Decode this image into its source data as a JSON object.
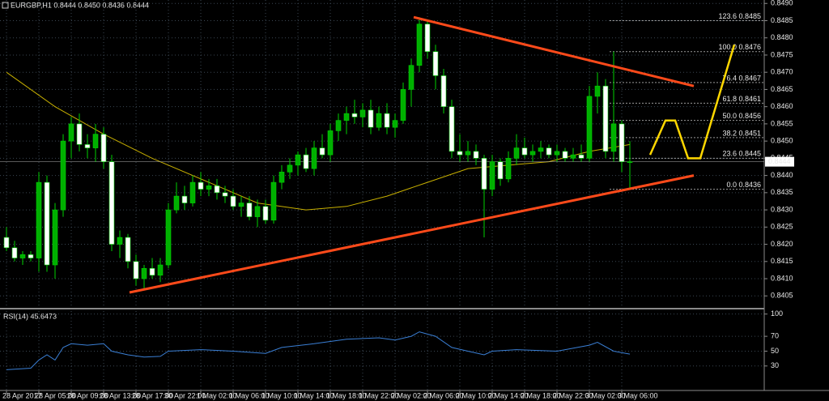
{
  "chart_data": [
    {
      "type": "candlestick",
      "title": "EURGBP,H1  0.8444 0.8450 0.8436 0.8444",
      "categories": [
        "28 Apr 2017",
        null,
        null,
        null,
        "28 Apr 05:00",
        null,
        null,
        null,
        "28 Apr 09:00",
        null,
        null,
        null,
        "28 Apr 13:00",
        null,
        null,
        null,
        "28 Apr 17:00",
        null,
        null,
        null,
        "30 Apr 22:00",
        null,
        null,
        null,
        "1 May 02:00",
        null,
        null,
        null,
        "1 May 06:00",
        null,
        null,
        null,
        "1 May 10:00",
        null,
        null,
        null,
        "1 May 14:00",
        null,
        null,
        null,
        "1 May 18:00",
        null,
        null,
        null,
        "1 May 22:00",
        null,
        null,
        null,
        "2 May 02:00",
        null,
        null,
        null,
        "2 May 06:00",
        null,
        null,
        null,
        "2 May 10:00",
        null,
        null,
        null,
        "2 May 14:00",
        null,
        null,
        null,
        "2 May 18:00",
        null,
        null,
        null,
        "2 May 22:00",
        null,
        null,
        null,
        "3 May 02:00",
        null,
        null,
        null,
        "3 May 06:00",
        null
      ],
      "open": [
        0.8422,
        0.8419,
        0.8416,
        0.8417,
        0.8416,
        0.8438,
        0.8414,
        0.843,
        0.845,
        0.8455,
        0.8449,
        0.8448,
        0.8452,
        0.8444,
        0.842,
        0.8422,
        0.8415,
        0.841,
        0.8413,
        0.8411,
        0.8414,
        0.843,
        0.8434,
        0.8432,
        0.8438,
        0.8436,
        0.8437,
        0.8435,
        0.8434,
        0.8431,
        0.8432,
        0.8428,
        0.8431,
        0.8427,
        0.8438,
        0.8441,
        0.8443,
        0.8446,
        0.8442,
        0.8448,
        0.8446,
        0.8453,
        0.8456,
        0.8458,
        0.8457,
        0.8459,
        0.8454,
        0.8458,
        0.8454,
        0.8456,
        0.8465,
        0.8472,
        0.8484,
        0.8476,
        0.8469,
        0.846,
        0.8447,
        0.8446,
        0.8447,
        0.8445,
        0.8436,
        0.8444,
        0.8439,
        0.8445,
        0.8448,
        0.8446,
        0.8447,
        0.8448,
        0.8446,
        0.8447,
        0.8445,
        0.8446,
        0.8445,
        0.8463,
        0.8466,
        0.8447,
        0.8455,
        0.8444
      ],
      "high": [
        0.8425,
        0.8421,
        0.8418,
        0.8418,
        0.8441,
        0.844,
        0.8432,
        0.8452,
        0.8457,
        0.8458,
        0.8452,
        0.8455,
        0.8454,
        0.8446,
        0.8424,
        0.8423,
        0.8417,
        0.8414,
        0.8416,
        0.8416,
        0.8432,
        0.8438,
        0.8437,
        0.844,
        0.8441,
        0.8439,
        0.8439,
        0.8437,
        0.8436,
        0.8434,
        0.8434,
        0.8433,
        0.8433,
        0.844,
        0.8443,
        0.8445,
        0.8447,
        0.8448,
        0.845,
        0.8452,
        0.8455,
        0.8458,
        0.846,
        0.8462,
        0.8461,
        0.8462,
        0.846,
        0.8461,
        0.8458,
        0.8467,
        0.8474,
        0.8486,
        0.8485,
        0.8478,
        0.8471,
        0.8462,
        0.8452,
        0.845,
        0.8449,
        0.8446,
        0.8446,
        0.8445,
        0.8447,
        0.8452,
        0.8451,
        0.8449,
        0.845,
        0.8449,
        0.8449,
        0.8448,
        0.8448,
        0.8449,
        0.8466,
        0.847,
        0.8468,
        0.8476,
        0.8456,
        0.845
      ],
      "low": [
        0.8418,
        0.8415,
        0.8414,
        0.8415,
        0.8412,
        0.8412,
        0.841,
        0.8428,
        0.8445,
        0.8447,
        0.8445,
        0.8444,
        0.8442,
        0.8418,
        0.8416,
        0.8413,
        0.8408,
        0.8407,
        0.841,
        0.8409,
        0.8413,
        0.8429,
        0.843,
        0.8431,
        0.8434,
        0.8434,
        0.8433,
        0.8432,
        0.843,
        0.8428,
        0.8427,
        0.8425,
        0.8426,
        0.8426,
        0.8436,
        0.8439,
        0.844,
        0.8441,
        0.844,
        0.8445,
        0.8444,
        0.845,
        0.8452,
        0.8455,
        0.8454,
        0.8452,
        0.8453,
        0.8452,
        0.8451,
        0.8455,
        0.846,
        0.847,
        0.8474,
        0.8465,
        0.8458,
        0.8445,
        0.8444,
        0.8444,
        0.8443,
        0.8422,
        0.8434,
        0.8437,
        0.8438,
        0.8443,
        0.8445,
        0.8444,
        0.8445,
        0.8445,
        0.8444,
        0.8444,
        0.8444,
        0.8444,
        0.8444,
        0.8458,
        0.8445,
        0.8444,
        0.8441,
        0.8436
      ],
      "close": [
        0.8419,
        0.8416,
        0.8417,
        0.8416,
        0.8438,
        0.8414,
        0.843,
        0.845,
        0.8455,
        0.8449,
        0.8448,
        0.8452,
        0.8444,
        0.842,
        0.8422,
        0.8415,
        0.841,
        0.8413,
        0.8411,
        0.8414,
        0.843,
        0.8434,
        0.8432,
        0.8438,
        0.8436,
        0.8437,
        0.8435,
        0.8434,
        0.8431,
        0.8432,
        0.8428,
        0.8431,
        0.8427,
        0.8438,
        0.8441,
        0.8443,
        0.8446,
        0.8442,
        0.8448,
        0.8446,
        0.8453,
        0.8456,
        0.8458,
        0.8457,
        0.8459,
        0.8454,
        0.8458,
        0.8454,
        0.8456,
        0.8465,
        0.8472,
        0.8484,
        0.8476,
        0.8469,
        0.846,
        0.8447,
        0.8446,
        0.8447,
        0.8445,
        0.8436,
        0.8444,
        0.8439,
        0.8445,
        0.8448,
        0.8446,
        0.8447,
        0.8448,
        0.8446,
        0.8447,
        0.8445,
        0.8446,
        0.8445,
        0.8463,
        0.8466,
        0.8447,
        0.8455,
        0.8444,
        0.8444
      ],
      "up_color": "#00b000",
      "down_color": "#ffffff",
      "wick_color": "#00d000",
      "xlim": [
        -0.8,
        93.6
      ],
      "ylim": [
        0.8402,
        0.8491
      ],
      "yticks": [
        {
          "value": 0.849,
          "label": "0.8490"
        },
        0.8485,
        {
          "value": 0.848,
          "label": "0.8480"
        },
        0.8475,
        {
          "value": 0.847,
          "label": "0.8470"
        },
        0.8465,
        {
          "value": 0.846,
          "label": "0.8460"
        },
        0.8455,
        {
          "value": 0.845,
          "label": "0.8450"
        },
        0.8445,
        {
          "value": 0.844,
          "label": "0.8440"
        },
        0.8435,
        {
          "value": 0.843,
          "label": "0.8430"
        },
        0.8425,
        {
          "value": 0.842,
          "label": "0.8420"
        },
        0.8415,
        {
          "value": 0.841,
          "label": "0.8410"
        },
        0.8405
      ],
      "grid": true,
      "current_price": 0.8444,
      "ma": {
        "color": "#c8b000",
        "x": [
          0,
          6,
          12,
          18,
          25,
          31,
          37,
          42,
          47,
          52,
          57,
          62,
          67,
          72,
          77
        ],
        "values": [
          0.847,
          0.846,
          0.8452,
          0.8445,
          0.8438,
          0.8432,
          0.843,
          0.8431,
          0.8434,
          0.8438,
          0.8442,
          0.8443,
          0.8444,
          0.8447,
          0.8449
        ]
      },
      "trendlines": [
        {
          "color": "#ff4a1a",
          "x": [
            50.3,
            84.9
          ],
          "values": [
            0.8486,
            0.8466
          ]
        },
        {
          "color": "#ff4a1a",
          "x": [
            15.2,
            84.9
          ],
          "values": [
            0.8406,
            0.844
          ]
        }
      ],
      "projection": {
        "color": "#ffd700",
        "x": [
          79.5,
          81.4,
          82.6,
          84.2,
          85.7,
          89.9
        ],
        "values": [
          0.8446,
          0.8456,
          0.8456,
          0.8445,
          0.8445,
          0.8478
        ]
      },
      "fibo": [
        {
          "label": "123.6 0.8485",
          "value": 0.8485
        },
        {
          "label": "100.0 0.8476",
          "value": 0.8476
        },
        {
          "label": "76.4 0.8467",
          "value": 0.8467
        },
        {
          "label": "61.8 0.8461",
          "value": 0.8461
        },
        {
          "label": "50.0 0.8456",
          "value": 0.8456
        },
        {
          "label": "38.2 0.8451",
          "value": 0.8451
        },
        {
          "label": "23.6 0.8445",
          "value": 0.8445
        },
        {
          "label": "0.0 0.8436",
          "value": 0.8436
        }
      ]
    },
    {
      "type": "line",
      "title": "RSI(14) 45.6473",
      "color": "#3a7fd5",
      "x": [
        0,
        3,
        4,
        5,
        6,
        7,
        8,
        10,
        12,
        13,
        15,
        17,
        19,
        20,
        24,
        28,
        32,
        34,
        38,
        42,
        46,
        48,
        50,
        51,
        53,
        55,
        57,
        59,
        60,
        63,
        68,
        72,
        73,
        75,
        77
      ],
      "values": [
        25,
        27,
        38,
        45,
        38,
        55,
        60,
        58,
        60,
        50,
        45,
        42,
        43,
        50,
        52,
        50,
        47,
        55,
        60,
        66,
        68,
        65,
        70,
        76,
        70,
        55,
        50,
        45,
        50,
        52,
        50,
        58,
        62,
        50,
        46
      ],
      "xlim": [
        -0.8,
        93.6
      ],
      "ylim": [
        -3,
        104
      ],
      "yticks": [
        100,
        70,
        50,
        30
      ],
      "grid": true
    }
  ]
}
